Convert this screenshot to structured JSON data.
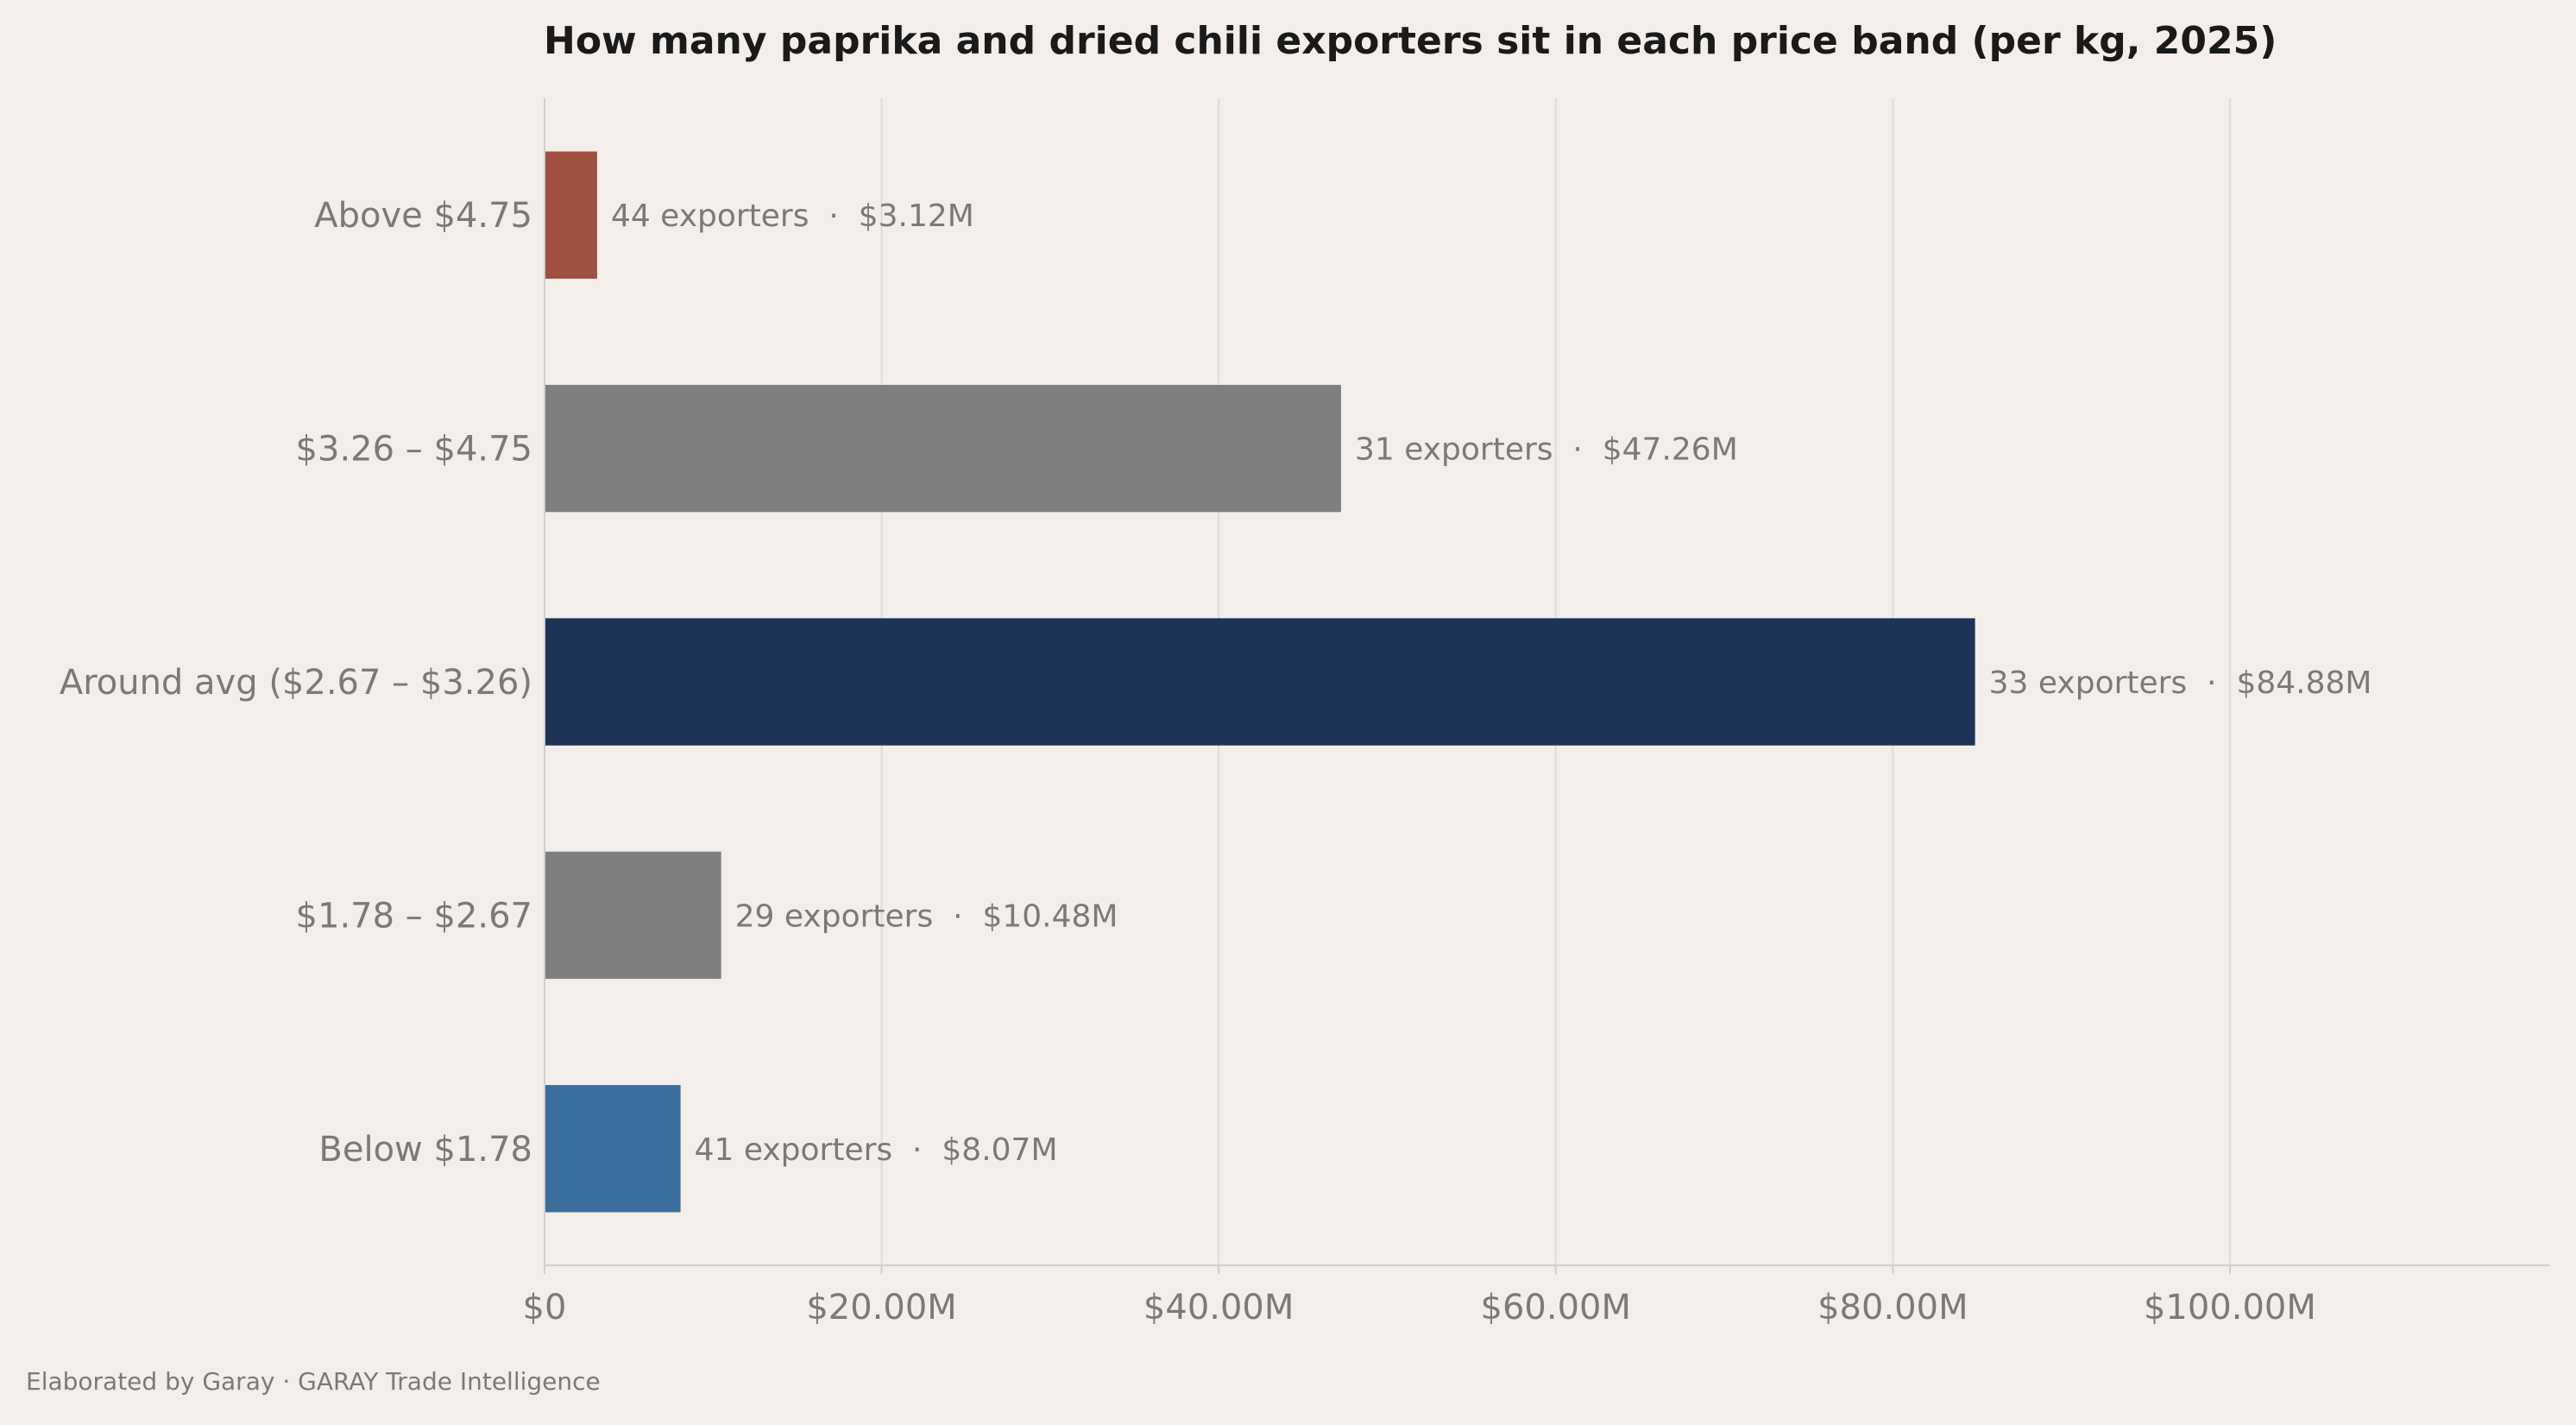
{
  "chart_data": {
    "type": "bar",
    "orientation": "horizontal",
    "title": "How many paprika and dried chili exporters sit in each price band (per kg, 2025)",
    "xlabel": "",
    "ylabel": "",
    "xlim": [
      0,
      119
    ],
    "grid": "vertical",
    "x_ticks": [
      0,
      20,
      40,
      60,
      80,
      100
    ],
    "x_tick_labels": [
      "$0",
      "$20.00M",
      "$40.00M",
      "$60.00M",
      "$80.00M",
      "$100.00M"
    ],
    "categories": [
      "Above $4.75",
      "$3.26 – $4.75",
      "Around avg ($2.67 – $3.26)",
      "$1.78 – $2.67",
      "Below $1.78"
    ],
    "values": [
      3.12,
      47.26,
      84.88,
      10.48,
      8.07
    ],
    "exporters": [
      44,
      31,
      33,
      29,
      41
    ],
    "value_unit": "$M",
    "bar_labels": [
      "44 exporters  ·  $3.12M",
      "31 exporters  ·  $47.26M",
      "33 exporters  ·  $84.88M",
      "29 exporters  ·  $10.48M",
      "41 exporters  ·  $8.07M"
    ],
    "colors": [
      "#a05040",
      "#7f7f7f",
      "#1e3457",
      "#7f7f7f",
      "#3b6e9c"
    ]
  },
  "footer": "Elaborated by Garay  ·  GARAY Trade Intelligence"
}
